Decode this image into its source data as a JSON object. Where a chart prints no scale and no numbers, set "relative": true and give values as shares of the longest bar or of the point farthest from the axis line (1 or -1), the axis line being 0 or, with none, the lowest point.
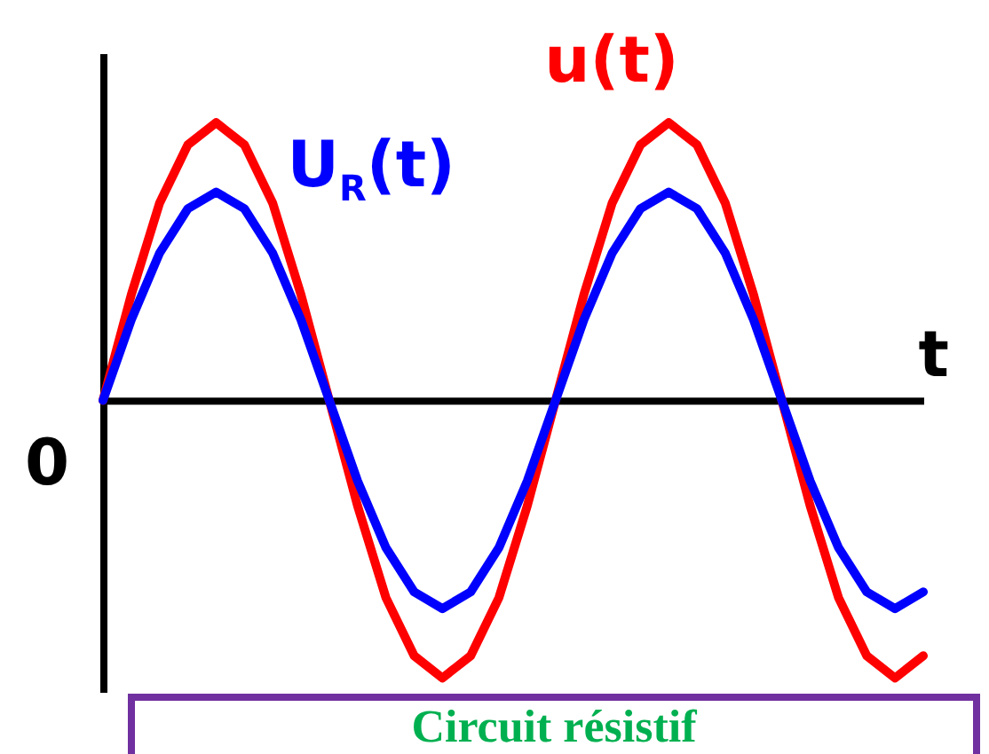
{
  "chart_data": {
    "type": "line",
    "relative": true,
    "xlabel": "t",
    "legend": false,
    "marker": "none",
    "line_style": "solid",
    "categories": [
      null,
      null,
      null,
      null,
      null,
      null,
      null,
      null,
      null,
      null,
      null,
      null,
      null,
      null,
      null,
      null,
      null,
      null,
      null,
      null,
      null,
      null,
      null,
      null,
      null,
      null,
      null,
      null,
      null,
      null
    ],
    "series": [
      {
        "name": "u(t)",
        "color": "#ff0000",
        "values": [
          0,
          0.38,
          0.71,
          0.92,
          1,
          0.92,
          0.71,
          0.38,
          0,
          -0.38,
          -0.71,
          -0.92,
          -1,
          -0.92,
          -0.71,
          -0.38,
          0,
          0.38,
          0.71,
          0.92,
          1,
          0.92,
          0.71,
          0.38,
          0,
          -0.38,
          -0.71,
          -0.92,
          -1,
          -0.92
        ]
      },
      {
        "name": "U$_{R}$(t)",
        "color": "#0000ff",
        "values": [
          0,
          0.29,
          0.53,
          0.69,
          0.75,
          0.69,
          0.53,
          0.29,
          0,
          -0.29,
          -0.53,
          -0.69,
          -0.75,
          -0.69,
          -0.53,
          -0.29,
          0,
          0.29,
          0.53,
          0.69,
          0.75,
          0.69,
          0.53,
          0.29,
          0,
          -0.29,
          -0.53,
          -0.69,
          -0.75,
          -0.69
        ]
      }
    ],
    "annotations": [
      "0",
      "Circuit résistif"
    ]
  }
}
